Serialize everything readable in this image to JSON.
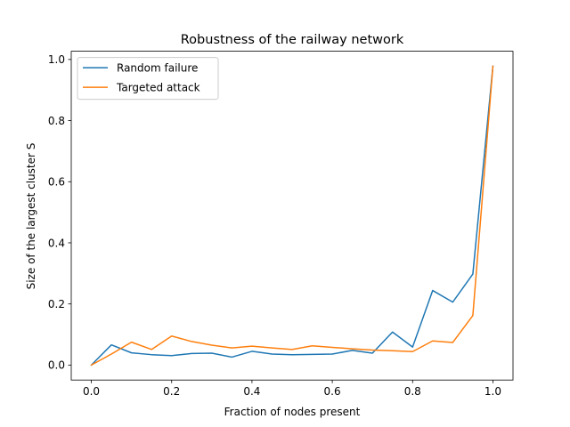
{
  "chart_data": {
    "type": "line",
    "title": "Robustness of the railway network",
    "xlabel": "Fraction of nodes present",
    "ylabel": "Size of the largest cluster S",
    "xlim": [
      -0.05,
      1.05
    ],
    "ylim": [
      -0.049,
      1.027
    ],
    "xticks": [
      0.0,
      0.2,
      0.4,
      0.6,
      0.8,
      1.0
    ],
    "xtick_labels": [
      "0.0",
      "0.2",
      "0.4",
      "0.6",
      "0.8",
      "1.0"
    ],
    "yticks": [
      0.0,
      0.2,
      0.4,
      0.6,
      0.8,
      1.0
    ],
    "ytick_labels": [
      "0.0",
      "0.2",
      "0.4",
      "0.6",
      "0.8",
      "1.0"
    ],
    "grid": false,
    "legend_position": "top-left",
    "x": [
      0.0,
      0.05,
      0.1,
      0.15,
      0.2,
      0.25,
      0.3,
      0.35,
      0.4,
      0.45,
      0.5,
      0.55,
      0.6,
      0.65,
      0.7,
      0.75,
      0.8,
      0.85,
      0.9,
      0.95,
      1.0
    ],
    "series": [
      {
        "name": "Random failure",
        "color": "#1f77b4",
        "values": [
          0.0,
          0.066,
          0.04,
          0.034,
          0.031,
          0.038,
          0.039,
          0.026,
          0.045,
          0.036,
          0.034,
          0.035,
          0.036,
          0.048,
          0.039,
          0.108,
          0.059,
          0.244,
          0.206,
          0.298,
          0.978
        ]
      },
      {
        "name": "Targeted attack",
        "color": "#ff7f0e",
        "values": [
          0.0,
          0.036,
          0.075,
          0.051,
          0.095,
          0.077,
          0.065,
          0.056,
          0.062,
          0.056,
          0.051,
          0.063,
          0.058,
          0.053,
          0.049,
          0.047,
          0.044,
          0.079,
          0.074,
          0.162,
          0.978
        ]
      }
    ]
  }
}
